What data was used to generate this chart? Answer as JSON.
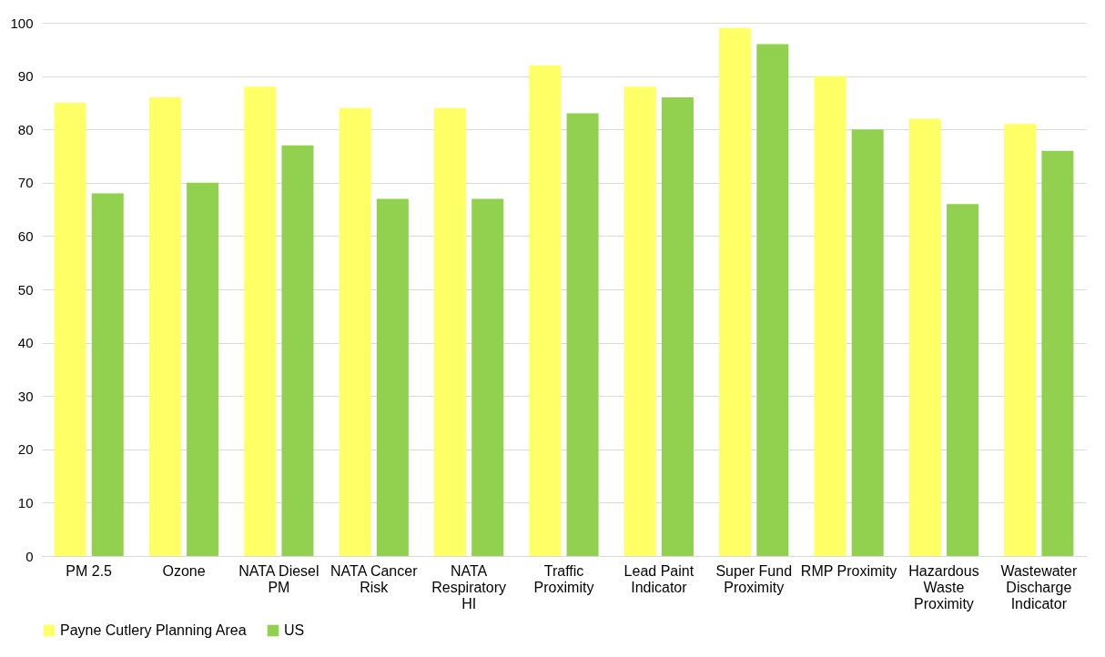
{
  "chart_data": {
    "type": "bar",
    "categories": [
      "PM 2.5",
      "Ozone",
      "NATA Diesel PM",
      "NATA Cancer Risk",
      "NATA Respiratory HI",
      "Traffic Proximity",
      "Lead Paint Indicator",
      "Super Fund Proximity",
      "RMP Proximity",
      "Hazardous Waste Proximity",
      "Wastewater Discharge Indicator"
    ],
    "series": [
      {
        "name": "Payne Cutlery Planning Area",
        "color": "#ffff66",
        "values": [
          85,
          86,
          88,
          84,
          84,
          92,
          88,
          99,
          90,
          82,
          81
        ]
      },
      {
        "name": "US",
        "color": "#92d050",
        "values": [
          68,
          70,
          77,
          67,
          67,
          83,
          86,
          96,
          80,
          66,
          76
        ]
      }
    ],
    "ylim": [
      0,
      100
    ],
    "yticks": [
      0,
      10,
      20,
      30,
      40,
      50,
      60,
      70,
      80,
      90,
      100
    ],
    "grid": "y",
    "legend": "bottom"
  }
}
